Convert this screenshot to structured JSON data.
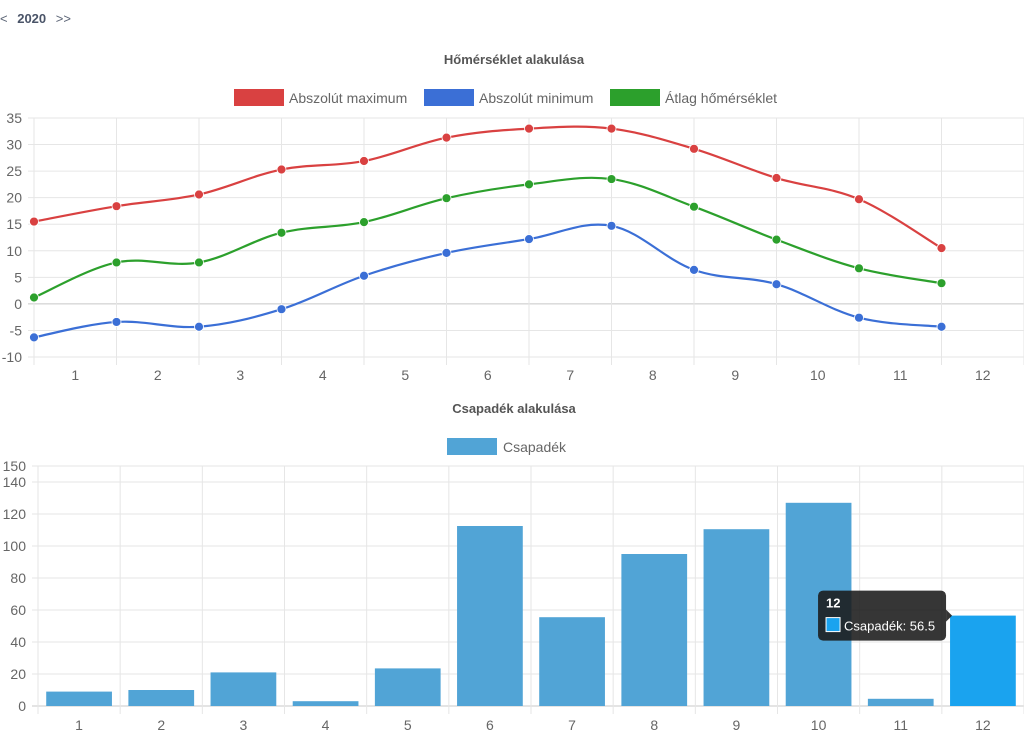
{
  "year_nav": {
    "prev": "<",
    "year": "2020",
    "next": ">>"
  },
  "colors": {
    "max": "#d94141",
    "min": "#3b6fd6",
    "avg": "#2ca02c",
    "bar": "#51a4d6",
    "bar_active": "#1aa3ef",
    "grid": "#e6e6e6",
    "zero": "#c8c8c8",
    "tooltip_bg": "#1a1a1a"
  },
  "chart_data": [
    {
      "type": "line",
      "title": "Hőmérséklet alakulása",
      "categories": [
        "1",
        "2",
        "3",
        "4",
        "5",
        "6",
        "7",
        "8",
        "9",
        "10",
        "11",
        "12"
      ],
      "series": [
        {
          "name": "Abszolút maximum",
          "color_key": "max",
          "values": [
            15.5,
            18.4,
            20.6,
            25.3,
            26.9,
            31.3,
            33.0,
            33.0,
            29.2,
            23.7,
            19.7,
            10.5
          ]
        },
        {
          "name": "Abszolút minimum",
          "color_key": "min",
          "values": [
            -6.3,
            -3.4,
            -4.3,
            -1.0,
            5.3,
            9.6,
            12.2,
            14.7,
            6.4,
            3.7,
            -2.6,
            -4.3
          ]
        },
        {
          "name": "Átlag hőmérséklet",
          "color_key": "avg",
          "values": [
            1.2,
            7.8,
            7.8,
            13.4,
            15.4,
            19.9,
            22.5,
            23.5,
            18.3,
            12.1,
            6.7,
            3.9
          ]
        }
      ],
      "ylim": [
        -10,
        35
      ],
      "yticks": [
        "35",
        "30",
        "25",
        "20",
        "15",
        "10",
        "5",
        "0",
        "-5",
        "-10"
      ],
      "legend": "top",
      "grid": true
    },
    {
      "type": "bar",
      "title": "Csapadék alakulása",
      "categories": [
        "1",
        "2",
        "3",
        "4",
        "5",
        "6",
        "7",
        "8",
        "9",
        "10",
        "11",
        "12"
      ],
      "series": [
        {
          "name": "Csapadék",
          "values": [
            9,
            10,
            21,
            3,
            23.5,
            112.5,
            55.5,
            95,
            110.5,
            127,
            4.5,
            56.5
          ]
        }
      ],
      "ylim": [
        0,
        150
      ],
      "yticks": [
        "150",
        "140",
        "120",
        "100",
        "80",
        "60",
        "40",
        "20",
        "0"
      ],
      "legend": "top",
      "grid": true,
      "active_index": 11,
      "tooltip": {
        "title": "12",
        "label": "Csapadék: 56.5"
      }
    }
  ]
}
